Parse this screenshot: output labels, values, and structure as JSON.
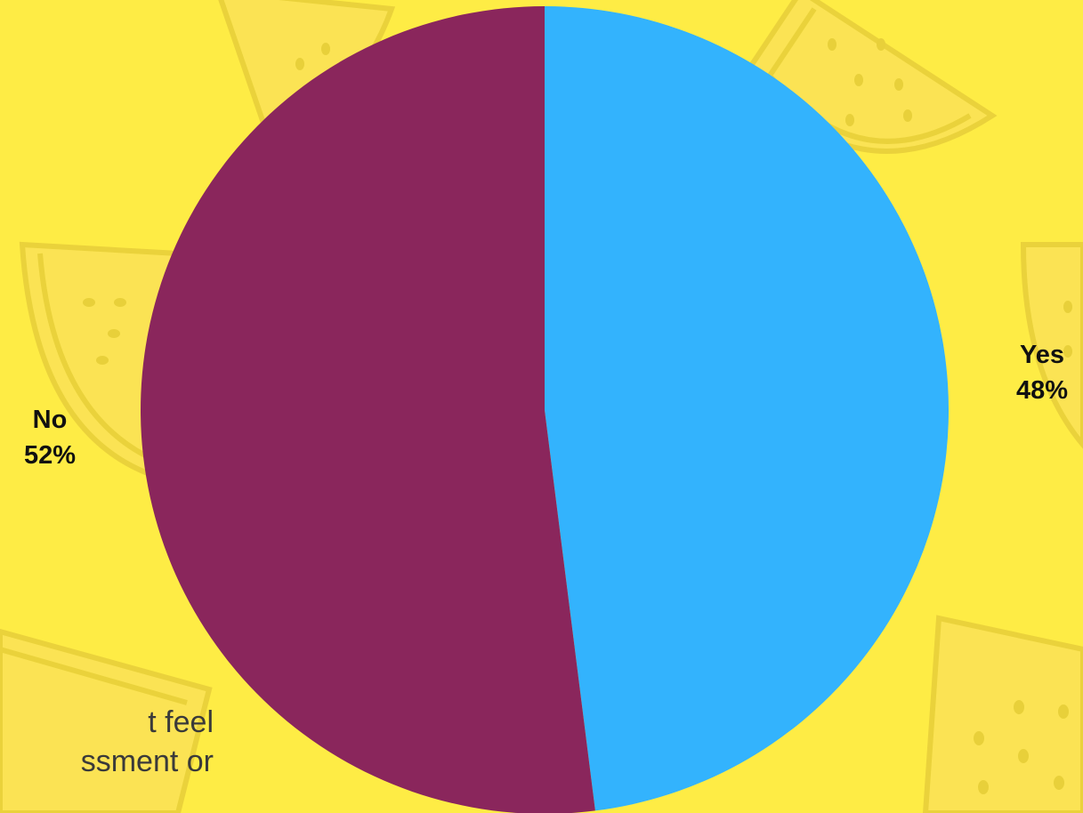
{
  "background_color": "#FEEC45",
  "decor_icon": "watermelon-slice-icon",
  "background_text": {
    "line1": "t feel",
    "line2": "ssment or"
  },
  "chart_data": {
    "type": "pie",
    "title": "",
    "slices": [
      {
        "label": "Yes",
        "value": 48,
        "display": "48%",
        "color": "#33B3FD"
      },
      {
        "label": "No",
        "value": 52,
        "display": "52%",
        "color": "#8A265C"
      }
    ],
    "start": "12 o'clock",
    "direction": "clockwise"
  }
}
